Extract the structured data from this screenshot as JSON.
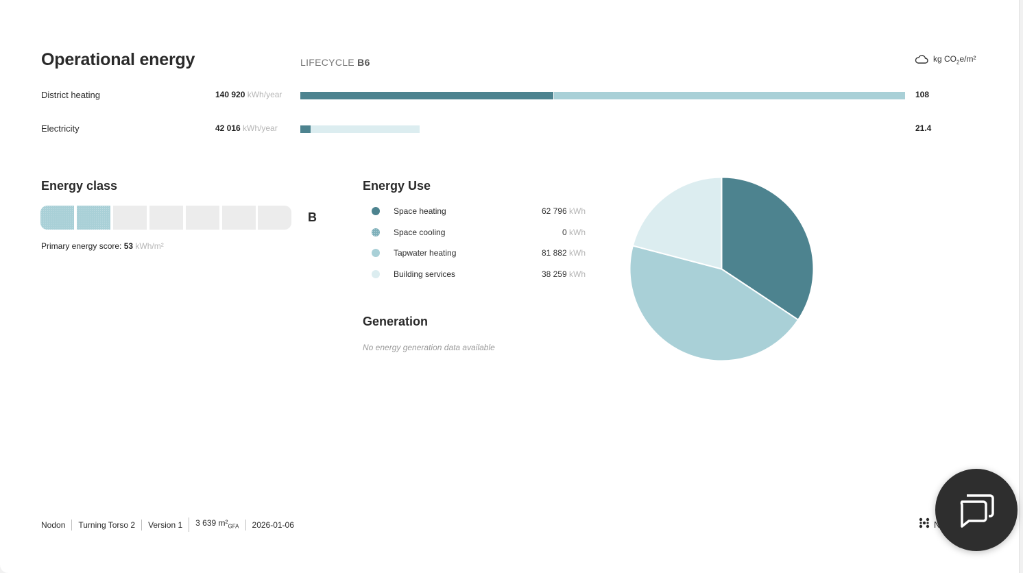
{
  "operational": {
    "title": "Operational energy",
    "lifecycle_prefix": "LIFECYCLE",
    "lifecycle_code": "B6",
    "unit_prefix": "kg CO",
    "unit_sub": "2",
    "unit_suffix": "e/m²",
    "unit_icon": "cloud-icon",
    "rows": [
      {
        "label": "District heating",
        "value": "140 920",
        "unit": "kWh/year",
        "result": "108"
      },
      {
        "label": "Electricity",
        "value": "42 016",
        "unit": "kWh/year",
        "result": "21.4"
      }
    ]
  },
  "energy_class": {
    "title": "Energy class",
    "grade": "B",
    "segments_total": 7,
    "segments_active": 2,
    "score_label": "Primary energy score:",
    "score_value": "53",
    "score_unit": "kWh/m²"
  },
  "energy_use": {
    "title": "Energy Use",
    "items": [
      {
        "label": "Space heating",
        "value": "62 796",
        "unit": "kWh"
      },
      {
        "label": "Space cooling",
        "value": "0",
        "unit": "kWh"
      },
      {
        "label": "Tapwater heating",
        "value": "81 882",
        "unit": "kWh"
      },
      {
        "label": "Building services",
        "value": "38 259",
        "unit": "kWh"
      }
    ]
  },
  "generation": {
    "title": "Generation",
    "empty_text": "No energy generation data available"
  },
  "chart_data": {
    "type": "pie",
    "categories": [
      "Space heating",
      "Space cooling",
      "Tapwater heating",
      "Building services"
    ],
    "values": [
      62796,
      0,
      81882,
      38259
    ],
    "colors": [
      "#4d838f",
      "#7fb0ba",
      "#a9d0d7",
      "#dcedf0"
    ]
  },
  "colors": {
    "primary": "#4d838f",
    "light": "#a9d0d7",
    "lighter": "#dcedf0",
    "track": "#ececec"
  },
  "footer": {
    "company": "Nodon",
    "project": "Turning Torso 2",
    "version": "Version 1",
    "area_value": "3 639 m²",
    "area_sub": "GFA",
    "date": "2026-01-06",
    "logo_icon": "nodon-logo-icon",
    "logo_text": "N"
  },
  "chat": {
    "icon": "chat-bubbles-icon"
  }
}
